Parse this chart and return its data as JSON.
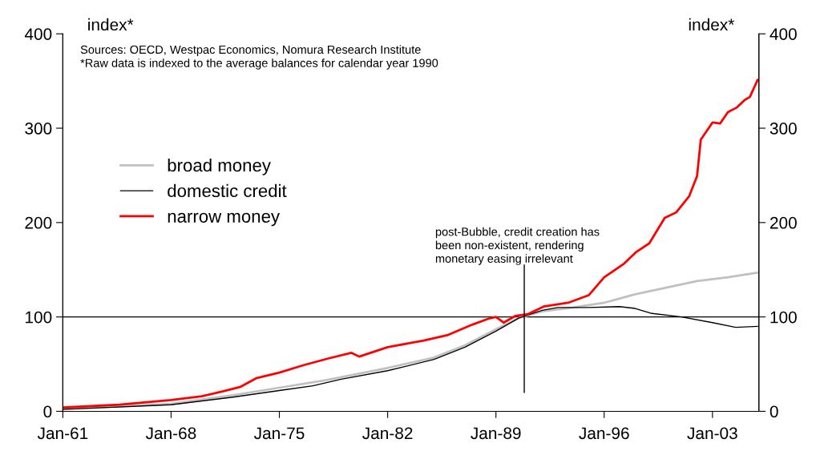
{
  "chart_data": {
    "type": "line",
    "ylabel": "index*",
    "y2label": "index*",
    "annotations": [
      "Sources: OECD, Westpac Economics, Nomura Research Institute\n*Raw data is indexed to the average balances for calendar year 1990",
      {
        "text": "post-Bubble, credit creation has\nbeen non-existent, rendering\nmonetary easing irrelevant",
        "x": "1990-11",
        "y": 155
      }
    ],
    "series": [
      {
        "name": "broad money",
        "color": "#c0c0c0",
        "x": [
          "1961-01",
          "1968-01",
          "1972-01",
          "1975-01",
          "1978-01",
          "1982-01",
          "1985-01",
          "1987-01",
          "1989-01",
          "1990-07",
          "1992-01",
          "1994-01",
          "1996-01",
          "1998-01",
          "2000-01",
          "2002-01",
          "2004-01",
          "2005-12"
        ],
        "values": [
          3,
          8,
          17,
          25,
          33,
          46,
          57,
          70,
          87,
          99,
          106,
          110,
          115,
          124,
          131,
          138,
          142,
          147
        ]
      },
      {
        "name": "domestic credit",
        "color": "#000000",
        "x": [
          "1961-01",
          "1968-01",
          "1972-01",
          "1975-01",
          "1977-03",
          "1979-01",
          "1982-01",
          "1985-01",
          "1987-01",
          "1989-01",
          "1990-07",
          "1992-01",
          "1993-01",
          "1995-01",
          "1997-01",
          "1998-01",
          "1999-01",
          "2001-01",
          "2003-01",
          "2004-07",
          "2005-12"
        ],
        "values": [
          2,
          7,
          15,
          22,
          27,
          34,
          43,
          55,
          68,
          85,
          99,
          107,
          110,
          110,
          111,
          109,
          104,
          100,
          94,
          89,
          90
        ]
      },
      {
        "name": "narrow money",
        "color": "#ff0000",
        "x": [
          "1961-01",
          "1964-09",
          "1968-01",
          "1970-01",
          "1971-05",
          "1972-07",
          "1973-07",
          "1975-01",
          "1976-08",
          "1978-03",
          "1979-09",
          "1980-03",
          "1982-01",
          "1984-05",
          "1985-12",
          "1987-07",
          "1988-07",
          "1989-01",
          "1989-07",
          "1990-04",
          "1991-02",
          "1992-02",
          "1993-09",
          "1995-01",
          "1996-01",
          "1997-04",
          "1998-02",
          "1998-12",
          "1999-12",
          "2000-09",
          "2001-07",
          "2002-01",
          "2002-04",
          "2003-01",
          "2003-07",
          "2004-01",
          "2004-08",
          "2005-02",
          "2005-06",
          "2005-12"
        ],
        "values": [
          4,
          7,
          12,
          16,
          21,
          26,
          35,
          41,
          49,
          56,
          62,
          58,
          68,
          75,
          81,
          92,
          98,
          100,
          94,
          101,
          103,
          111,
          115,
          123,
          142,
          156,
          169,
          178,
          205,
          211,
          228,
          249,
          288,
          306,
          305,
          317,
          322,
          330,
          333,
          351
        ]
      },
      {
        "type": "line",
        "color": "#000000",
        "x": [
          "1990-11",
          "1990-11"
        ],
        "values": [
          20,
          155
        ]
      }
    ],
    "ref_lines": [
      {
        "axis": "y",
        "value": 100,
        "color": "#000000"
      }
    ],
    "xlim": [
      "1961-01",
      "2006-01"
    ],
    "xticks": [
      {
        "value": "1961-01",
        "label": "Jan-61"
      },
      {
        "value": "1968-01",
        "label": "Jan-68"
      },
      {
        "value": "1975-01",
        "label": "Jan-75"
      },
      {
        "value": "1982-01",
        "label": "Jan-82"
      },
      {
        "value": "1989-01",
        "label": "Jan-89"
      },
      {
        "value": "1996-01",
        "label": "Jan-96"
      },
      {
        "value": "2003-01",
        "label": "Jan-03"
      }
    ],
    "ylim": [
      0,
      400
    ],
    "yticks": [
      0,
      100,
      200,
      300,
      400
    ],
    "y2lim": [
      0,
      400
    ],
    "y2ticks": [
      0,
      100,
      200,
      300,
      400
    ],
    "legend": "left",
    "grid": false
  }
}
